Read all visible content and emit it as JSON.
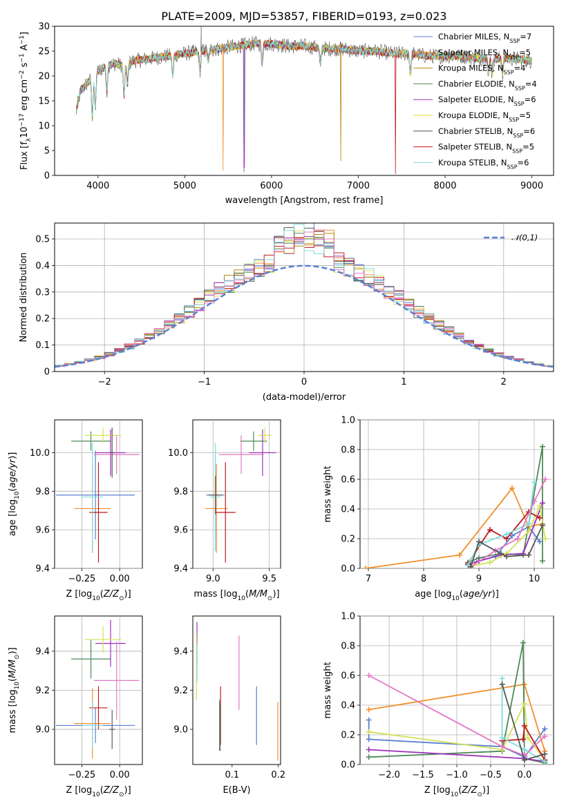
{
  "title": "PLATE=2009, MJD=53857, FIBERID=0193, z=0.023",
  "chart_data": [
    {
      "id": "spectrum",
      "type": "line",
      "xlabel": "wavelength [Angstrom, rest frame]",
      "ylabel": "Flux [f_λ 10^-17 erg cm^-2 s^-1 A^-1]",
      "xlim": [
        3500,
        9250
      ],
      "ylim": [
        0,
        30
      ],
      "xticks": [
        4000,
        5000,
        6000,
        7000,
        8000,
        9000
      ],
      "yticks": [
        0,
        5,
        10,
        15,
        20,
        25,
        30
      ],
      "grid": false,
      "legend": "top-right",
      "series": [
        {
          "name": "Chabrier MILES, N_SSP=7",
          "color": "#5a7fd4"
        },
        {
          "name": "Salpeter MILES, N_SSP=5",
          "color": "#f28e2b"
        },
        {
          "name": "Kroupa MILES, N_SSP=4",
          "color": "#b8860b"
        },
        {
          "name": "Chabrier ELODIE, N_SSP=4",
          "color": "#4e8a57"
        },
        {
          "name": "Salpeter ELODIE, N_SSP=6",
          "color": "#9b30b8"
        },
        {
          "name": "Kroupa ELODIE, N_SSP=5",
          "color": "#e0e030"
        },
        {
          "name": "Chabrier STELIB, N_SSP=6",
          "color": "#555555"
        },
        {
          "name": "Salpeter STELIB, N_SSP=5",
          "color": "#c0181c"
        },
        {
          "name": "Kroupa STELIB, N_SSP=6",
          "color": "#7fdede"
        }
      ],
      "continuum": {
        "x": [
          3750,
          3800,
          3900,
          4000,
          4100,
          4200,
          4300,
          4400,
          4600,
          4800,
          5000,
          5200,
          5400,
          5600,
          5800,
          6000,
          6200,
          6400,
          6600,
          6800,
          7000,
          7200,
          7400,
          7600,
          7800,
          8000,
          8200,
          8400,
          8600,
          8800,
          9000
        ],
        "y": [
          13,
          17,
          19,
          21,
          22,
          22.5,
          22,
          23,
          23.5,
          24,
          24.5,
          25,
          25.5,
          26,
          26.5,
          26.5,
          26,
          26,
          25.5,
          25.5,
          25,
          25,
          24.5,
          24.5,
          24,
          24,
          24,
          23.5,
          23.5,
          23.5,
          23
        ]
      }
    },
    {
      "id": "residuals",
      "type": "step",
      "xlabel": "(data-model)/error",
      "ylabel": "Normed distribution",
      "xlim": [
        -2.5,
        2.5
      ],
      "ylim": [
        0,
        0.56
      ],
      "xticks": [
        -2,
        -1,
        0,
        1,
        2
      ],
      "yticks": [
        0.0,
        0.1,
        0.2,
        0.3,
        0.4,
        0.5
      ],
      "grid": true,
      "legend": "top-right",
      "gaussian": {
        "name": "𝒩(0,1)",
        "color": "#5a7fd4"
      }
    },
    {
      "id": "age-vs-Z",
      "type": "errorbar",
      "xlabel": "Z [log10(Z/Z⊙)]",
      "ylabel": "age [log10(age/yr)]",
      "xlim": [
        -0.43,
        0.15
      ],
      "ylim": [
        9.4,
        10.17
      ],
      "xticks": [
        -0.25,
        0.0
      ],
      "yticks": [
        9.4,
        9.6,
        9.8,
        10.0
      ],
      "grid": true,
      "points": [
        {
          "x": -0.16,
          "y": 9.78,
          "xerr": 0.26,
          "yerr": 0.23,
          "color": "#5a7fd4"
        },
        {
          "x": -0.18,
          "y": 9.71,
          "xerr": 0.12,
          "yerr": 0.23,
          "color": "#f28e2b"
        },
        {
          "x": -0.19,
          "y": 10.06,
          "xerr": 0.13,
          "yerr": 0.05,
          "color": "#4e8a57"
        },
        {
          "x": -0.06,
          "y": 10.0,
          "xerr": 0.1,
          "yerr": 0.12,
          "color": "#9b30b8"
        },
        {
          "x": -0.11,
          "y": 10.09,
          "xerr": 0.12,
          "yerr": 0.04,
          "color": "#d4e157"
        },
        {
          "x": -0.14,
          "y": 9.69,
          "xerr": 0.06,
          "yerr": 0.26,
          "color": "#c0181c"
        },
        {
          "x": -0.18,
          "y": 9.77,
          "xerr": 0.07,
          "yerr": 0.28,
          "color": "#7fdede"
        },
        {
          "x": -0.02,
          "y": 9.99,
          "xerr": 0.15,
          "yerr": 0.1,
          "color": "#e377c2"
        },
        {
          "x": -0.05,
          "y": 10.0,
          "xerr": 0.02,
          "yerr": 0.13,
          "color": "#555555"
        }
      ]
    },
    {
      "id": "age-vs-mass",
      "type": "errorbar",
      "xlabel": "mass [log10(M/M⊙)]",
      "ylabel": "",
      "xlim": [
        8.82,
        9.6
      ],
      "ylim": [
        9.4,
        10.17
      ],
      "xticks": [
        9.0,
        9.5
      ],
      "yticks": [
        9.4,
        9.6,
        9.8,
        10.0
      ],
      "grid": true,
      "points": [
        {
          "x": 9.02,
          "y": 9.78,
          "xerr": 0.08,
          "yerr": 0.23,
          "color": "#5a7fd4"
        },
        {
          "x": 9.03,
          "y": 9.71,
          "xerr": 0.1,
          "yerr": 0.23,
          "color": "#f28e2b"
        },
        {
          "x": 9.36,
          "y": 10.06,
          "xerr": 0.12,
          "yerr": 0.05,
          "color": "#4e8a57"
        },
        {
          "x": 9.44,
          "y": 10.0,
          "xerr": 0.12,
          "yerr": 0.12,
          "color": "#9b30b8"
        },
        {
          "x": 9.46,
          "y": 10.09,
          "xerr": 0.06,
          "yerr": 0.04,
          "color": "#d4e157"
        },
        {
          "x": 9.11,
          "y": 9.69,
          "xerr": 0.09,
          "yerr": 0.26,
          "color": "#c0181c"
        },
        {
          "x": 9.02,
          "y": 9.77,
          "xerr": 0.05,
          "yerr": 0.28,
          "color": "#7fdede"
        },
        {
          "x": 9.25,
          "y": 9.99,
          "xerr": 0.2,
          "yerr": 0.1,
          "color": "#e377c2"
        },
        {
          "x": 9.02,
          "y": 9.78,
          "xerr": 0.06,
          "yerr": 0.1,
          "color": "#555555"
        }
      ]
    },
    {
      "id": "massweight-vs-age",
      "type": "line",
      "xlabel": "age [log10(age/yr)]",
      "ylabel": "mass weight",
      "xlim": [
        6.85,
        10.35
      ],
      "ylim": [
        0,
        1
      ],
      "xticks": [
        7,
        8,
        9,
        10
      ],
      "yticks": [
        0.0,
        0.2,
        0.4,
        0.6,
        0.8,
        1.0
      ],
      "grid": true,
      "series": [
        {
          "color": "#5a7fd4",
          "x": [
            8.8,
            9.0,
            9.3,
            9.6,
            9.9,
            10.1
          ],
          "y": [
            0.03,
            0.05,
            0.08,
            0.22,
            0.28,
            0.18
          ]
        },
        {
          "color": "#f28e2b",
          "x": [
            6.95,
            8.65,
            9.6,
            9.9,
            10.15
          ],
          "y": [
            0.0,
            0.09,
            0.54,
            0.28,
            0.3
          ]
        },
        {
          "color": "#4e8a57",
          "x": [
            8.8,
            9.0,
            9.4,
            9.8,
            10.15,
            10.15
          ],
          "y": [
            0.04,
            0.07,
            0.1,
            0.09,
            0.82,
            0.05
          ]
        },
        {
          "color": "#9b30b8",
          "x": [
            8.8,
            9.0,
            9.4,
            9.8,
            10.15
          ],
          "y": [
            0.02,
            0.05,
            0.09,
            0.1,
            0.44
          ]
        },
        {
          "color": "#d4e157",
          "x": [
            8.9,
            9.2,
            9.5,
            9.9,
            10.1,
            10.2
          ],
          "y": [
            0.02,
            0.04,
            0.1,
            0.25,
            0.42,
            0.2
          ]
        },
        {
          "color": "#c0181c",
          "x": [
            8.8,
            9.2,
            9.5,
            9.9,
            10.1
          ],
          "y": [
            0.03,
            0.26,
            0.2,
            0.38,
            0.34
          ]
        },
        {
          "color": "#7fdede",
          "x": [
            8.8,
            9.0,
            9.5,
            9.9,
            10.0
          ],
          "y": [
            0.02,
            0.16,
            0.23,
            0.3,
            0.58
          ]
        },
        {
          "color": "#e377c2",
          "x": [
            8.85,
            9.3,
            9.7,
            10.0,
            10.2
          ],
          "y": [
            0.01,
            0.12,
            0.2,
            0.45,
            0.6
          ]
        },
        {
          "color": "#555555",
          "x": [
            8.85,
            9.0,
            9.5,
            9.9,
            10.15
          ],
          "y": [
            0.01,
            0.18,
            0.08,
            0.09,
            0.29
          ]
        }
      ]
    },
    {
      "id": "mass-vs-Z",
      "type": "errorbar",
      "xlabel": "Z [log10(Z/Z⊙)]",
      "ylabel": "mass [log10(M/M⊙)]",
      "xlim": [
        -0.43,
        0.15
      ],
      "ylim": [
        8.82,
        9.58
      ],
      "xticks": [
        -0.25,
        0.0
      ],
      "yticks": [
        9.0,
        9.2,
        9.4
      ],
      "grid": true,
      "points": [
        {
          "x": -0.16,
          "y": 9.02,
          "xerr": 0.26,
          "yerr": 0.09,
          "color": "#5a7fd4"
        },
        {
          "x": -0.18,
          "y": 9.03,
          "xerr": 0.12,
          "yerr": 0.18,
          "color": "#f28e2b"
        },
        {
          "x": -0.19,
          "y": 9.36,
          "xerr": 0.13,
          "yerr": 0.1,
          "color": "#4e8a57"
        },
        {
          "x": -0.06,
          "y": 9.44,
          "xerr": 0.1,
          "yerr": 0.12,
          "color": "#9b30b8"
        },
        {
          "x": -0.11,
          "y": 9.46,
          "xerr": 0.12,
          "yerr": 0.07,
          "color": "#d4e157"
        },
        {
          "x": -0.14,
          "y": 9.11,
          "xerr": 0.06,
          "yerr": 0.11,
          "color": "#c0181c"
        },
        {
          "x": -0.18,
          "y": 9.02,
          "xerr": 0.07,
          "yerr": 0.12,
          "color": "#7fdede"
        },
        {
          "x": -0.02,
          "y": 9.25,
          "xerr": 0.15,
          "yerr": 0.2,
          "color": "#e377c2"
        },
        {
          "x": -0.05,
          "y": 9.0,
          "xerr": 0.02,
          "yerr": 0.1,
          "color": "#555555"
        }
      ]
    },
    {
      "id": "mass-vs-ebv",
      "type": "errorbar",
      "xlabel": "E(B-V)",
      "ylabel": "",
      "xlim": [
        0.015,
        0.205
      ],
      "ylim": [
        8.82,
        9.58
      ],
      "xticks": [
        0.1,
        0.2
      ],
      "yticks": [
        9.0,
        9.2,
        9.4
      ],
      "grid": false,
      "points": [
        {
          "x": 0.153,
          "y": 9.07,
          "xerr": 0.0,
          "yerr": 0.15,
          "color": "#5a7fd4"
        },
        {
          "x": 0.199,
          "y": 8.99,
          "xerr": 0.0,
          "yerr": 0.15,
          "color": "#f28e2b"
        },
        {
          "x": 0.073,
          "y": 9.02,
          "xerr": 0.0,
          "yerr": 0.13,
          "color": "#4e8a57"
        },
        {
          "x": 0.024,
          "y": 9.44,
          "xerr": 0.0,
          "yerr": 0.11,
          "color": "#9b30b8"
        },
        {
          "x": 0.023,
          "y": 9.32,
          "xerr": 0.0,
          "yerr": 0.17,
          "color": "#d4e157"
        },
        {
          "x": 0.075,
          "y": 9.07,
          "xerr": 0.0,
          "yerr": 0.15,
          "color": "#c0181c"
        },
        {
          "x": 0.024,
          "y": 9.34,
          "xerr": 0.0,
          "yerr": 0.1,
          "color": "#7fdede"
        },
        {
          "x": 0.115,
          "y": 9.29,
          "xerr": 0.0,
          "yerr": 0.19,
          "color": "#e377c2"
        },
        {
          "x": 0.074,
          "y": 9.01,
          "xerr": 0.0,
          "yerr": 0.12,
          "color": "#555555"
        }
      ]
    },
    {
      "id": "massweight-vs-Z",
      "type": "line",
      "xlabel": "Z [log10(Z/Z⊙)]",
      "ylabel": "mass weight",
      "xlim": [
        -2.43,
        0.43
      ],
      "ylim": [
        0,
        1
      ],
      "xticks": [
        -2.0,
        -1.5,
        -1.0,
        -0.5,
        0.0
      ],
      "yticks": [
        0.0,
        0.2,
        0.4,
        0.6,
        0.8,
        1.0
      ],
      "grid": true,
      "series": [
        {
          "color": "#5a7fd4",
          "x": [
            -2.3,
            -2.3,
            -0.33,
            0.0,
            0.3
          ],
          "y": [
            0.3,
            0.17,
            0.12,
            0.05,
            0.24
          ]
        },
        {
          "color": "#f28e2b",
          "x": [
            -2.3,
            0.0,
            0.3
          ],
          "y": [
            0.37,
            0.54,
            0.09
          ]
        },
        {
          "color": "#4e8a57",
          "x": [
            -2.3,
            -0.33,
            -0.02,
            0.0,
            0.3
          ],
          "y": [
            0.05,
            0.09,
            0.82,
            0.04,
            0.01
          ]
        },
        {
          "color": "#9b30b8",
          "x": [
            -2.3,
            0.0,
            0.3
          ],
          "y": [
            0.1,
            0.04,
            0.02
          ]
        },
        {
          "color": "#d4e157",
          "x": [
            -2.3,
            -0.33,
            0.0,
            0.05,
            0.3
          ],
          "y": [
            0.22,
            0.1,
            0.41,
            0.18,
            0.03
          ]
        },
        {
          "color": "#c0181c",
          "x": [
            -0.33,
            -0.02,
            0.0,
            0.3
          ],
          "y": [
            0.16,
            0.17,
            0.26,
            0.03
          ]
        },
        {
          "color": "#7fdede",
          "x": [
            -0.33,
            -0.33,
            0.0,
            0.3
          ],
          "y": [
            0.58,
            0.18,
            0.1,
            0.02
          ]
        },
        {
          "color": "#e377c2",
          "x": [
            -2.3,
            -0.33,
            0.0,
            0.3
          ],
          "y": [
            0.6,
            0.12,
            0.06,
            0.19
          ]
        },
        {
          "color": "#555555",
          "x": [
            -0.33,
            0.0,
            0.3
          ],
          "y": [
            0.54,
            0.03,
            0.07
          ]
        }
      ]
    }
  ]
}
